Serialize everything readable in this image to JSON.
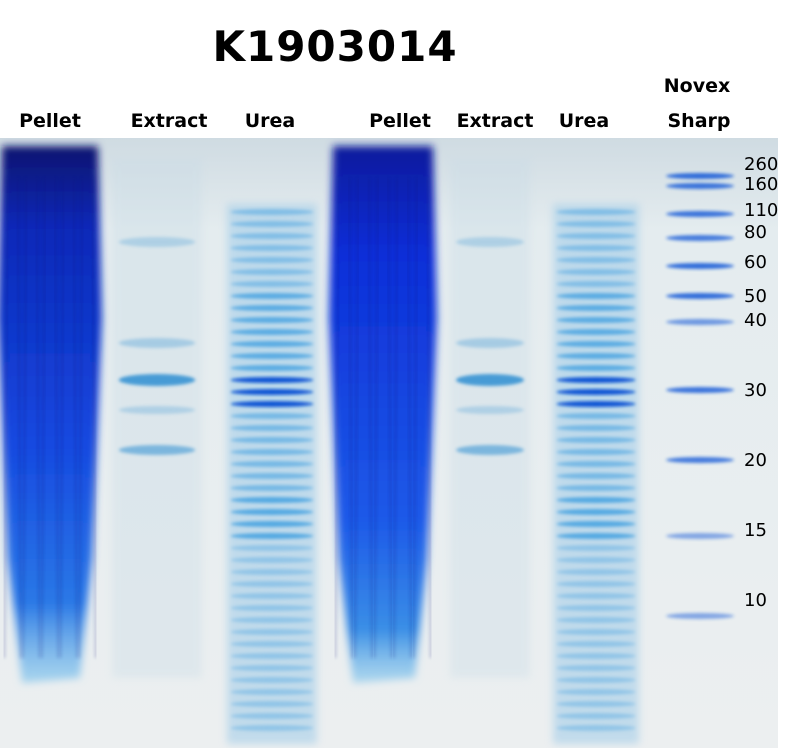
{
  "title": "K1903014",
  "lanes": [
    {
      "label": "Pellet",
      "type": "pellet"
    },
    {
      "label": "Extract",
      "type": "extract"
    },
    {
      "label": "Urea",
      "type": "urea"
    },
    {
      "label": "Pellet",
      "type": "pellet"
    },
    {
      "label": "Extract",
      "type": "extract"
    },
    {
      "label": "Urea",
      "type": "urea"
    }
  ],
  "ladder": {
    "label_line1": "Novex",
    "label_line2": "Sharp",
    "markers": [
      "260",
      "160",
      "110",
      "80",
      "60",
      "50",
      "40",
      "30",
      "20",
      "15",
      "10"
    ]
  },
  "colors": {
    "gel_background": "#e3ebee",
    "band_dark": "#0a1a8c",
    "band_blue": "#1a4fe0",
    "band_light": "#6ab4e6"
  }
}
